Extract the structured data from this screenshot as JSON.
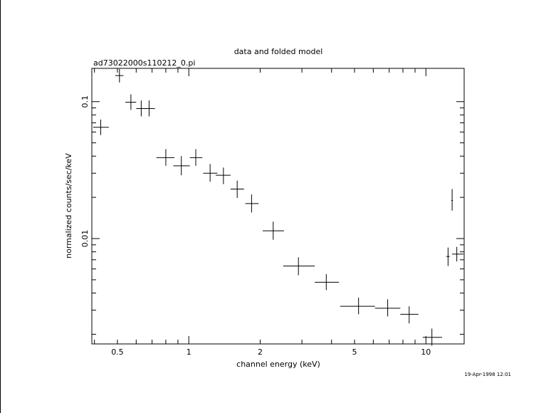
{
  "chart_data": {
    "type": "scatter",
    "title": "data and folded model",
    "subtitle": "ad73022000s110212_0.pi",
    "xlabel": "channel energy (keV)",
    "ylabel": "normalized counts/sec/keV",
    "x_scale": "log",
    "y_scale": "log",
    "xlim": [
      0.39,
      14.5
    ],
    "ylim": [
      0.0017,
      0.175
    ],
    "x_ticks": [
      {
        "value": 0.5,
        "label": "0.5"
      },
      {
        "value": 1,
        "label": "1"
      },
      {
        "value": 2,
        "label": "2"
      },
      {
        "value": 5,
        "label": "5"
      },
      {
        "value": 10,
        "label": "10"
      }
    ],
    "y_ticks": [
      {
        "value": 0.1,
        "label": "0.1"
      },
      {
        "value": 0.01,
        "label": "0.01"
      }
    ],
    "grid": false,
    "series": [
      {
        "points": [
          {
            "x": 0.425,
            "xlo": 0.395,
            "xhi": 0.46,
            "y": 0.065,
            "ylo": 0.057,
            "yhi": 0.074
          },
          {
            "x": 0.51,
            "xlo": 0.49,
            "xhi": 0.53,
            "y": 0.155,
            "ylo": 0.138,
            "yhi": 0.173
          },
          {
            "x": 0.57,
            "xlo": 0.54,
            "xhi": 0.6,
            "y": 0.099,
            "ylo": 0.087,
            "yhi": 0.113
          },
          {
            "x": 0.63,
            "xlo": 0.6,
            "xhi": 0.66,
            "y": 0.089,
            "ylo": 0.078,
            "yhi": 0.102
          },
          {
            "x": 0.68,
            "xlo": 0.65,
            "xhi": 0.72,
            "y": 0.089,
            "ylo": 0.078,
            "yhi": 0.102
          },
          {
            "x": 0.8,
            "xlo": 0.73,
            "xhi": 0.87,
            "y": 0.039,
            "ylo": 0.034,
            "yhi": 0.045
          },
          {
            "x": 0.93,
            "xlo": 0.86,
            "xhi": 1.01,
            "y": 0.034,
            "ylo": 0.029,
            "yhi": 0.04
          },
          {
            "x": 1.07,
            "xlo": 1.01,
            "xhi": 1.14,
            "y": 0.039,
            "ylo": 0.034,
            "yhi": 0.045
          },
          {
            "x": 1.23,
            "xlo": 1.15,
            "xhi": 1.32,
            "y": 0.03,
            "ylo": 0.026,
            "yhi": 0.035
          },
          {
            "x": 1.4,
            "xlo": 1.3,
            "xhi": 1.5,
            "y": 0.029,
            "ylo": 0.025,
            "yhi": 0.033
          },
          {
            "x": 1.6,
            "xlo": 1.5,
            "xhi": 1.71,
            "y": 0.023,
            "ylo": 0.0198,
            "yhi": 0.0265
          },
          {
            "x": 1.84,
            "xlo": 1.73,
            "xhi": 1.97,
            "y": 0.018,
            "ylo": 0.0155,
            "yhi": 0.021
          },
          {
            "x": 2.27,
            "xlo": 2.05,
            "xhi": 2.52,
            "y": 0.0114,
            "ylo": 0.0098,
            "yhi": 0.0133
          },
          {
            "x": 2.9,
            "xlo": 2.5,
            "xhi": 3.4,
            "y": 0.0063,
            "ylo": 0.0054,
            "yhi": 0.0073
          },
          {
            "x": 3.8,
            "xlo": 3.4,
            "xhi": 4.3,
            "y": 0.0048,
            "ylo": 0.0042,
            "yhi": 0.0055
          },
          {
            "x": 5.2,
            "xlo": 4.35,
            "xhi": 6.1,
            "y": 0.0032,
            "ylo": 0.0028,
            "yhi": 0.0037
          },
          {
            "x": 6.9,
            "xlo": 6.1,
            "xhi": 7.8,
            "y": 0.0031,
            "ylo": 0.0027,
            "yhi": 0.0036
          },
          {
            "x": 8.5,
            "xlo": 7.8,
            "xhi": 9.3,
            "y": 0.0028,
            "ylo": 0.0024,
            "yhi": 0.0032
          },
          {
            "x": 10.6,
            "xlo": 9.7,
            "xhi": 11.7,
            "y": 0.0019,
            "ylo": 0.00165,
            "yhi": 0.0022
          },
          {
            "x": 12.4,
            "xlo": 12.2,
            "xhi": 12.6,
            "y": 0.0074,
            "ylo": 0.0063,
            "yhi": 0.0086
          },
          {
            "x": 12.9,
            "xlo": 12.8,
            "xhi": 13.0,
            "y": 0.019,
            "ylo": 0.016,
            "yhi": 0.023
          },
          {
            "x": 13.5,
            "xlo": 12.9,
            "xhi": 14.4,
            "y": 0.0077,
            "ylo": 0.0068,
            "yhi": 0.0087
          }
        ]
      }
    ]
  },
  "footer": {
    "timestamp": "19-Apr-1998 12:01"
  }
}
